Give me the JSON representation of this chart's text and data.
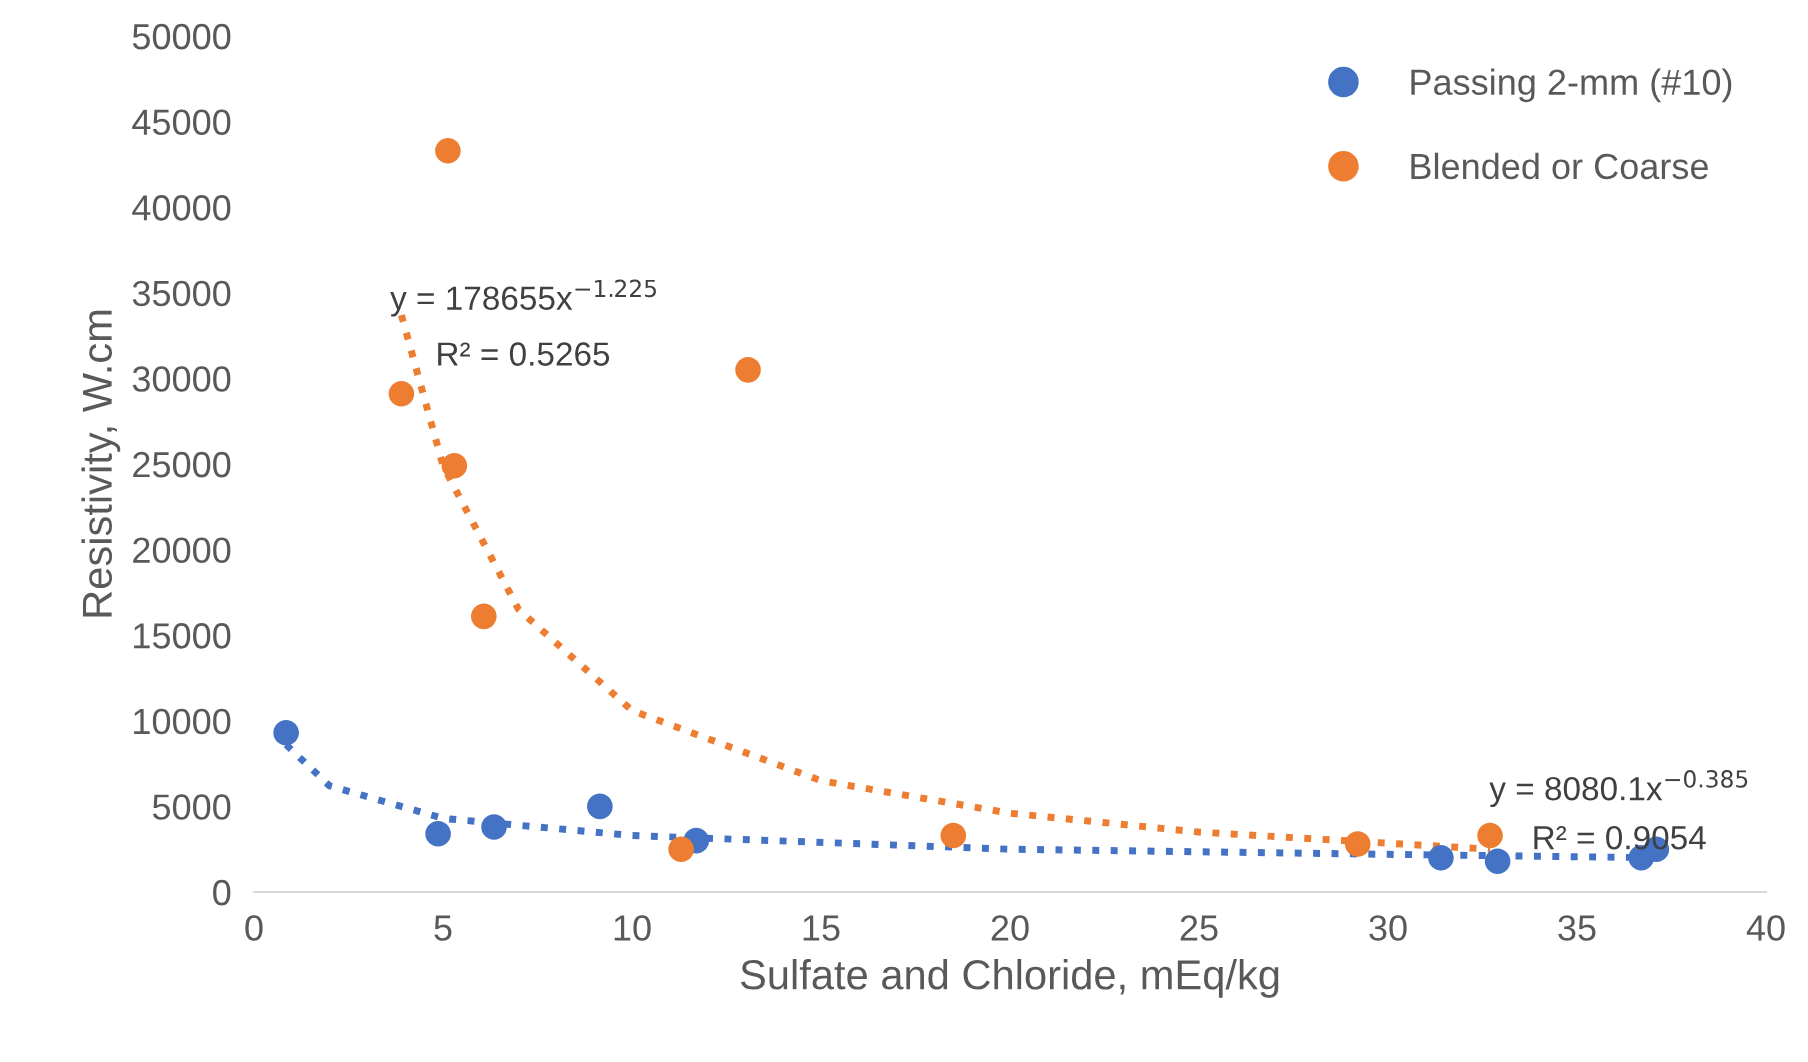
{
  "chart_data": {
    "type": "scatter",
    "xlabel": "Sulfate and Chloride, mEq/kg",
    "ylabel": "Resistivity, W.cm",
    "xlim": [
      0,
      40
    ],
    "xticks": [
      0,
      5,
      10,
      15,
      20,
      25,
      30,
      35,
      40
    ],
    "ylim": [
      0,
      50000
    ],
    "yticks": [
      0,
      5000,
      10000,
      15000,
      20000,
      25000,
      30000,
      35000,
      40000,
      45000,
      50000
    ],
    "grid": false,
    "legend": "top right",
    "marker": "circle",
    "series": [
      {
        "name": "Passing 2-mm (#10)",
        "color": "#4472c4",
        "x": [
          0.85,
          4.87,
          6.35,
          9.15,
          11.7,
          31.4,
          32.9,
          36.7,
          37.1
        ],
        "values": [
          9300,
          3400,
          3800,
          5000,
          3000,
          2000,
          1800,
          2000,
          2500
        ]
      },
      {
        "name": "Blended or Coarse",
        "color": "#ed7d31",
        "x": [
          5.13,
          3.9,
          5.3,
          6.08,
          13.07,
          11.3,
          18.5,
          29.2,
          32.7
        ],
        "values": [
          43300,
          29100,
          24900,
          16100,
          30500,
          2500,
          3300,
          2800,
          3300
        ]
      },
      {
        "type": "line",
        "color": "#ed7d31",
        "line_style": "dotted",
        "marker": "none",
        "x": [
          3.9,
          5,
          7,
          10,
          15,
          20,
          25,
          32.7
        ],
        "values": [
          33700,
          24900,
          16500,
          10600,
          6500,
          4600,
          3500,
          2500
        ]
      },
      {
        "type": "line",
        "color": "#4472c4",
        "line_style": "dotted",
        "marker": "none",
        "x": [
          0.85,
          2,
          5,
          10,
          20,
          30,
          37.1
        ],
        "values": [
          8600,
          6200,
          4300,
          3300,
          2500,
          2200,
          2000
        ]
      }
    ],
    "annotations": [
      "y = 178655x$^{−1.225}$",
      "R² = 0.5265",
      "y = 8080.1x$^{−0.385}$",
      "R² = 0.9054"
    ]
  }
}
